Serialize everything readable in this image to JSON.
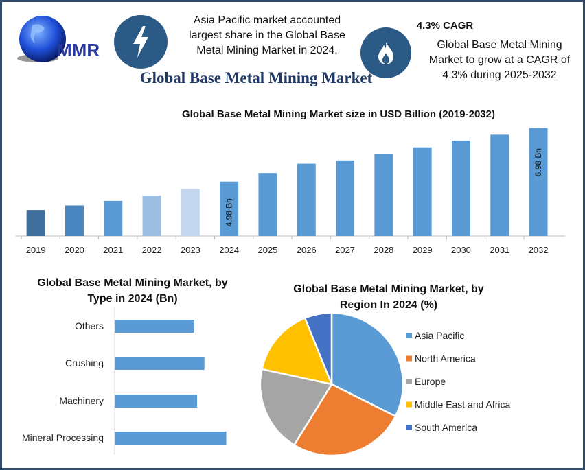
{
  "header": {
    "logo_text": "MMR",
    "bolt_icon": "lightning-bolt-icon",
    "flame_icon": "flame-icon",
    "highlight_text": "Asia Pacific market accounted largest share in the Global Base Metal Mining Market in 2024.",
    "cagr_title": "4.3% CAGR",
    "cagr_text": "Global Base Metal Mining Market to grow at a CAGR of 4.3% during 2025-2032",
    "title": "Global Base Metal Mining Market"
  },
  "colors": {
    "accent": "#2b5a86",
    "title": "#1f3864",
    "bar": "#5b9bd5"
  },
  "chart_data": [
    {
      "type": "bar",
      "title": "Global Base Metal Mining Market size in USD Billion (2019-2032)",
      "categories": [
        "2019",
        "2020",
        "2021",
        "2022",
        "2023",
        "2024",
        "2025",
        "2026",
        "2027",
        "2028",
        "2029",
        "2030",
        "2031",
        "2032"
      ],
      "values": [
        3.92,
        4.09,
        4.26,
        4.46,
        4.71,
        4.98,
        5.3,
        5.65,
        5.77,
        6.02,
        6.26,
        6.51,
        6.73,
        6.98
      ],
      "bar_colors": [
        "#3f6e9c",
        "#4a86bf",
        "#5b9bd5",
        "#9dbde3",
        "#c4d7ef",
        "#5b9bd5",
        "#5b9bd5",
        "#5b9bd5",
        "#5b9bd5",
        "#5b9bd5",
        "#5b9bd5",
        "#5b9bd5",
        "#5b9bd5",
        "#5b9bd5"
      ],
      "data_labels": {
        "2024": "4.98 Bn",
        "2032": "6.98 Bn"
      },
      "ylim": [
        2.95,
        7.2
      ],
      "grid": false
    },
    {
      "type": "bar",
      "orientation": "horizontal",
      "title": "Global Base Metal Mining Market, by Type in 2024 (Bn)",
      "categories": [
        "Others",
        "Crushing",
        "Machinery",
        "Mineral Processing"
      ],
      "values": [
        1.09,
        1.23,
        1.13,
        1.53
      ],
      "xlim": [
        0,
        1.6
      ]
    },
    {
      "type": "pie",
      "title": "Global Base Metal Mining Market, by Region In 2024 (%)",
      "labels": [
        "Asia Pacific",
        "North America",
        "Europe",
        "Middle East and Africa",
        "South America"
      ],
      "values": [
        32.4,
        26.4,
        19.6,
        15.5,
        6.1
      ],
      "colors": [
        "#5b9bd5",
        "#ed7d31",
        "#a5a5a5",
        "#ffc000",
        "#4472c4"
      ],
      "legend": "right"
    }
  ]
}
